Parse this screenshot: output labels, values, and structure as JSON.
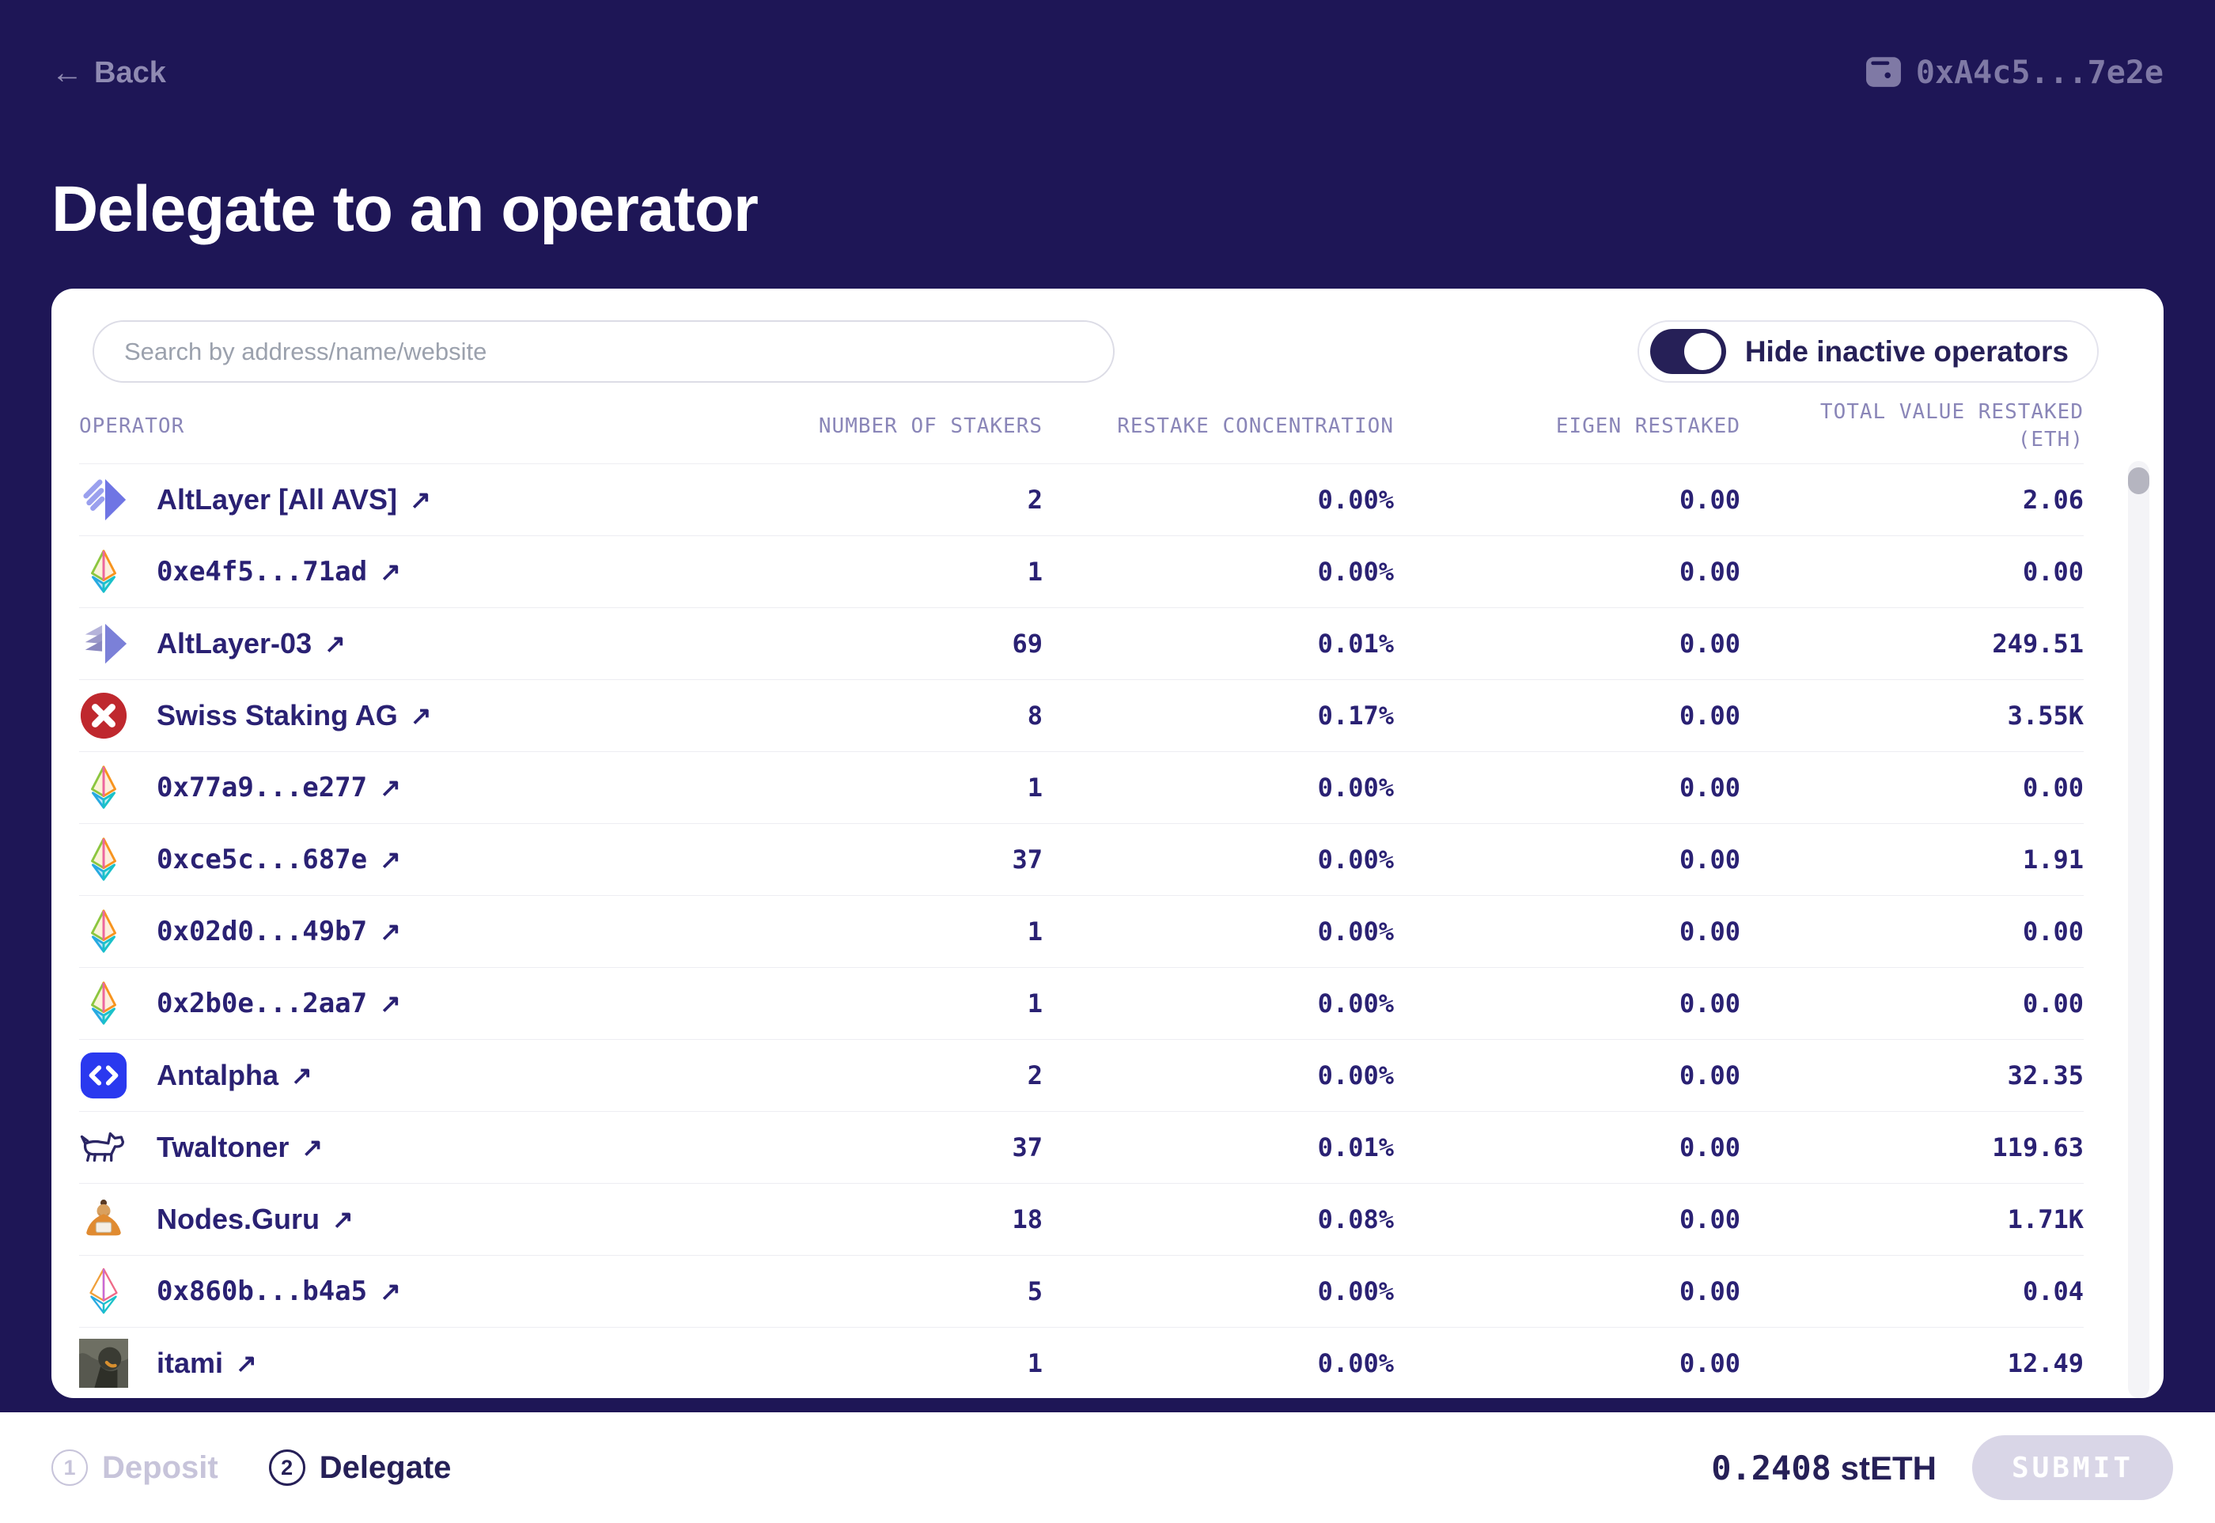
{
  "header": {
    "back_label": "Back",
    "wallet_address": "0xA4c5...7e2e"
  },
  "page_title": "Delegate to an operator",
  "panel": {
    "search_placeholder": "Search by address/name/website",
    "toggle_label": "Hide inactive operators",
    "toggle_on": true,
    "table": {
      "columns": [
        "OPERATOR",
        "NUMBER OF STAKERS",
        "RESTAKE CONCENTRATION",
        "EIGEN RESTAKED",
        "TOTAL VALUE RESTAKED (ETH)"
      ],
      "rows": [
        {
          "name": "AltLayer [All AVS]",
          "icon": "altlayer-logo",
          "stakers": "2",
          "concentration": "0.00%",
          "eigen": "0.00",
          "total": "2.06"
        },
        {
          "name": "0xe4f5...71ad",
          "icon": "eth-logo",
          "stakers": "1",
          "concentration": "0.00%",
          "eigen": "0.00",
          "total": "0.00"
        },
        {
          "name": "AltLayer-03",
          "icon": "altlayer-stack-logo",
          "stakers": "69",
          "concentration": "0.01%",
          "eigen": "0.00",
          "total": "249.51"
        },
        {
          "name": "Swiss Staking AG",
          "icon": "swiss-staking-logo",
          "stakers": "8",
          "concentration": "0.17%",
          "eigen": "0.00",
          "total": "3.55K"
        },
        {
          "name": "0x77a9...e277",
          "icon": "eth-logo",
          "stakers": "1",
          "concentration": "0.00%",
          "eigen": "0.00",
          "total": "0.00"
        },
        {
          "name": "0xce5c...687e",
          "icon": "eth-logo",
          "stakers": "37",
          "concentration": "0.00%",
          "eigen": "0.00",
          "total": "1.91"
        },
        {
          "name": "0x02d0...49b7",
          "icon": "eth-logo",
          "stakers": "1",
          "concentration": "0.00%",
          "eigen": "0.00",
          "total": "0.00"
        },
        {
          "name": "0x2b0e...2aa7",
          "icon": "eth-logo",
          "stakers": "1",
          "concentration": "0.00%",
          "eigen": "0.00",
          "total": "0.00"
        },
        {
          "name": "Antalpha",
          "icon": "antalpha-logo",
          "stakers": "2",
          "concentration": "0.00%",
          "eigen": "0.00",
          "total": "32.35"
        },
        {
          "name": "Twaltoner",
          "icon": "dog-logo",
          "stakers": "37",
          "concentration": "0.01%",
          "eigen": "0.00",
          "total": "119.63"
        },
        {
          "name": "Nodes.Guru",
          "icon": "guru-logo",
          "stakers": "18",
          "concentration": "0.08%",
          "eigen": "0.00",
          "total": "1.71K"
        },
        {
          "name": "0x860b...b4a5",
          "icon": "eth-outline-logo",
          "stakers": "5",
          "concentration": "0.00%",
          "eigen": "0.00",
          "total": "0.04"
        },
        {
          "name": "itami",
          "icon": "photo-avatar",
          "stakers": "1",
          "concentration": "0.00%",
          "eigen": "0.00",
          "total": "12.49"
        }
      ]
    }
  },
  "footer": {
    "steps": [
      {
        "number": "1",
        "label": "Deposit",
        "active": false
      },
      {
        "number": "2",
        "label": "Delegate",
        "active": true
      }
    ],
    "amount": "0.2408",
    "token": "stETH",
    "submit_label": "SUBMIT"
  },
  "colors": {
    "background": "#1e1656",
    "text_dark": "#2a2173",
    "muted_lavender": "#8f8ab2",
    "header_label": "#8a86b8",
    "divider": "#ededf2",
    "submit_bg": "#d9d6e7",
    "swiss_red": "#bf282e",
    "antalpha_blue": "#2a39ef"
  }
}
